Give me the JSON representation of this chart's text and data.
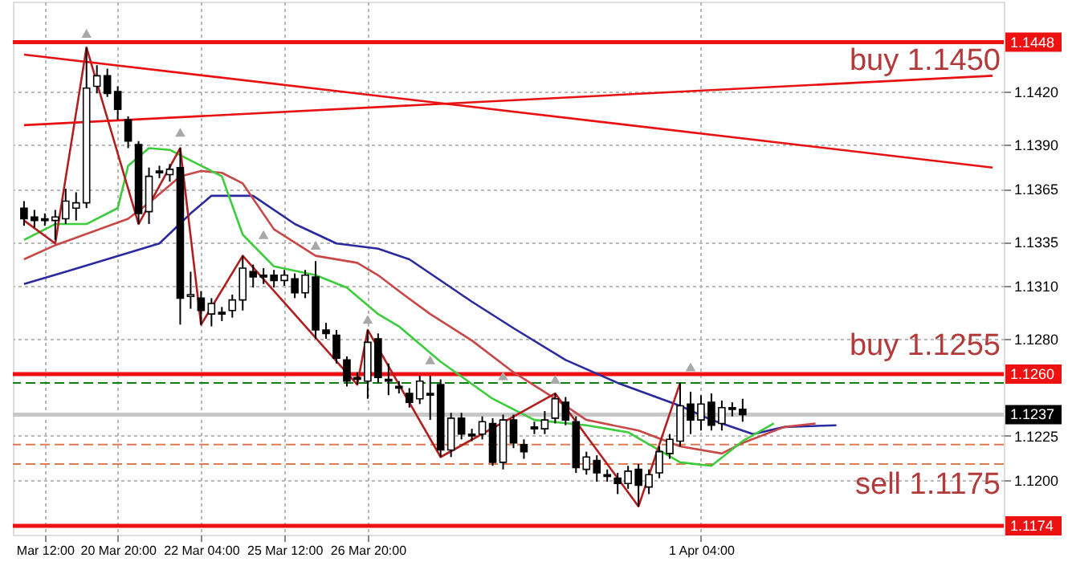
{
  "chart_data": {
    "type": "candlestick",
    "categories": [
      null,
      null,
      "Mar 12:00",
      null,
      null,
      null,
      null,
      null,
      null,
      "20 Mar 20:00",
      null,
      null,
      null,
      null,
      null,
      null,
      null,
      "22 Mar 04:00",
      null,
      null,
      null,
      null,
      null,
      null,
      null,
      "25 Mar 12:00",
      null,
      null,
      null,
      null,
      null,
      null,
      null,
      "26 Mar 20:00",
      null,
      null,
      null,
      null,
      null,
      null,
      null,
      null,
      null,
      null,
      null,
      null,
      null,
      null,
      null,
      null,
      null,
      null,
      null,
      null,
      null,
      null,
      null,
      null,
      null,
      null,
      null,
      null,
      null,
      null,
      null,
      "1 Apr 04:00",
      null,
      null,
      null,
      null,
      null,
      null,
      null,
      null,
      null,
      null,
      null,
      null,
      null,
      null,
      null,
      null,
      null,
      null,
      null,
      null,
      null,
      null,
      null,
      null,
      null,
      null,
      null,
      null
    ],
    "ohlc": [
      [
        1.1354,
        1.1358,
        1.1344,
        1.1348
      ],
      [
        1.1349,
        1.1353,
        1.1343,
        1.1347
      ],
      [
        1.1348,
        1.1351,
        1.1344,
        1.1347
      ],
      [
        1.1347,
        1.1353,
        1.1336,
        1.1349
      ],
      [
        1.1348,
        1.1365,
        1.1345,
        1.1358
      ],
      [
        1.1354,
        1.1363,
        1.1347,
        1.1357
      ],
      [
        1.1357,
        1.1445,
        1.1354,
        1.1422
      ],
      [
        1.1423,
        1.1435,
        1.1419,
        1.1429
      ],
      [
        1.1429,
        1.1433,
        1.1417,
        1.1419
      ],
      [
        1.142,
        1.1423,
        1.1404,
        1.141
      ],
      [
        1.1404,
        1.1406,
        1.1388,
        1.1392
      ],
      [
        1.139,
        1.1392,
        1.1345,
        1.1351
      ],
      [
        1.1352,
        1.1377,
        1.1345,
        1.1372
      ],
      [
        1.1375,
        1.1378,
        1.1371,
        1.1374
      ],
      [
        1.1373,
        1.1379,
        1.1369,
        1.1376
      ],
      [
        1.1377,
        1.1388,
        1.1288,
        1.1303
      ],
      [
        1.1304,
        1.1318,
        1.1297,
        1.1305
      ],
      [
        1.1303,
        1.1307,
        1.1288,
        1.1296
      ],
      [
        1.1294,
        1.1303,
        1.1287,
        1.13
      ],
      [
        1.1295,
        1.1298,
        1.129,
        1.1294
      ],
      [
        1.1296,
        1.1305,
        1.1292,
        1.1302
      ],
      [
        1.1302,
        1.1327,
        1.1296,
        1.132
      ],
      [
        1.1318,
        1.1322,
        1.1309,
        1.1315
      ],
      [
        1.1316,
        1.132,
        1.1311,
        1.1315
      ],
      [
        1.1316,
        1.1319,
        1.1309,
        1.1313
      ],
      [
        1.1313,
        1.1319,
        1.131,
        1.1316
      ],
      [
        1.1314,
        1.1317,
        1.1303,
        1.1306
      ],
      [
        1.1306,
        1.1319,
        1.1303,
        1.1316
      ],
      [
        1.1315,
        1.1324,
        1.128,
        1.1285
      ],
      [
        1.1285,
        1.1289,
        1.128,
        1.1283
      ],
      [
        1.1282,
        1.1285,
        1.1266,
        1.1269
      ],
      [
        1.1268,
        1.127,
        1.1253,
        1.1256
      ],
      [
        1.1258,
        1.1261,
        1.1254,
        1.1257
      ],
      [
        1.1256,
        1.1285,
        1.1246,
        1.1278
      ],
      [
        1.128,
        1.1283,
        1.1255,
        1.1258
      ],
      [
        1.1257,
        1.1266,
        1.1248,
        1.1256
      ],
      [
        1.1253,
        1.1256,
        1.1249,
        1.1252
      ],
      [
        1.1249,
        1.1252,
        1.1241,
        1.1244
      ],
      [
        1.1246,
        1.1259,
        1.1243,
        1.1256
      ],
      [
        1.1249,
        1.1259,
        1.1234,
        1.1248
      ],
      [
        1.1254,
        1.1257,
        1.1213,
        1.1217
      ],
      [
        1.1217,
        1.1238,
        1.1213,
        1.1235
      ],
      [
        1.1235,
        1.1238,
        1.1223,
        1.1226
      ],
      [
        1.1226,
        1.1229,
        1.1222,
        1.1225
      ],
      [
        1.1226,
        1.1236,
        1.1223,
        1.1233
      ],
      [
        1.1232,
        1.1235,
        1.1208,
        1.121
      ],
      [
        1.121,
        1.1237,
        1.1206,
        1.1234
      ],
      [
        1.1234,
        1.1237,
        1.1218,
        1.1221
      ],
      [
        1.122,
        1.1223,
        1.1212,
        1.1216
      ],
      [
        1.123,
        1.1233,
        1.1226,
        1.1229
      ],
      [
        1.1229,
        1.1239,
        1.1226,
        1.1234
      ],
      [
        1.1235,
        1.1249,
        1.1232,
        1.1246
      ],
      [
        1.1244,
        1.1247,
        1.1231,
        1.1234
      ],
      [
        1.1233,
        1.1236,
        1.1204,
        1.1207
      ],
      [
        1.1206,
        1.1216,
        1.1203,
        1.1213
      ],
      [
        1.1211,
        1.1214,
        1.1199,
        1.1204
      ],
      [
        1.1203,
        1.1206,
        1.1199,
        1.1202
      ],
      [
        1.1201,
        1.1204,
        1.1192,
        1.1198
      ],
      [
        1.1198,
        1.1208,
        1.1195,
        1.1205
      ],
      [
        1.1206,
        1.1209,
        1.1185,
        1.1197
      ],
      [
        1.1196,
        1.1206,
        1.1192,
        1.1203
      ],
      [
        1.1204,
        1.1219,
        1.1201,
        1.1216
      ],
      [
        1.1215,
        1.1226,
        1.1212,
        1.1223
      ],
      [
        1.1222,
        1.1255,
        1.1219,
        1.1242
      ],
      [
        1.1243,
        1.125,
        1.1226,
        1.1234
      ],
      [
        1.1234,
        1.1248,
        1.1228,
        1.1243
      ],
      [
        1.1244,
        1.1249,
        1.1228,
        1.1231
      ],
      [
        1.1232,
        1.1245,
        1.1228,
        1.1241
      ],
      [
        1.1241,
        1.1244,
        1.1236,
        1.124
      ],
      [
        1.124,
        1.1246,
        1.1233,
        1.1237
      ],
      null,
      null,
      null,
      null,
      null,
      null,
      null,
      null,
      null,
      null,
      null,
      null,
      null,
      null,
      null,
      null,
      null,
      null,
      null,
      null,
      null,
      null,
      null,
      null
    ],
    "series": [
      {
        "type": "line",
        "color": "#2a2a9e",
        "values": [
          1.1311,
          null,
          null,
          null,
          1.1318,
          null,
          null,
          null,
          null,
          null,
          null,
          null,
          null,
          1.1334,
          null,
          null,
          1.1351,
          null,
          1.1361,
          null,
          null,
          null,
          1.1361,
          null,
          null,
          null,
          1.1345,
          null,
          null,
          null,
          1.1334,
          null,
          null,
          null,
          1.1331,
          null,
          null,
          1.1325,
          null,
          null,
          null,
          null,
          null,
          1.1301,
          null,
          null,
          null,
          1.1286,
          null,
          null,
          null,
          null,
          1.1268,
          null,
          null,
          null,
          null,
          1.1255,
          null,
          null,
          null,
          null,
          null,
          1.1242,
          null,
          null,
          1.1234,
          null,
          null,
          null,
          1.1226,
          null,
          null,
          1.123,
          null,
          null,
          null,
          null,
          1.1231,
          null,
          null,
          null,
          null,
          null,
          null,
          null,
          null,
          null,
          null,
          null,
          null,
          null,
          null,
          null
        ]
      },
      {
        "type": "line",
        "color": "#c84848",
        "values": [
          1.1325,
          null,
          null,
          1.1333,
          null,
          null,
          null,
          null,
          null,
          null,
          1.1348,
          null,
          1.1357,
          null,
          null,
          1.1372,
          null,
          1.1375,
          null,
          1.1374,
          null,
          1.1368,
          null,
          null,
          1.1342,
          null,
          null,
          null,
          1.1327,
          null,
          null,
          null,
          1.1323,
          null,
          1.1316,
          null,
          1.1307,
          null,
          null,
          1.1294,
          null,
          null,
          null,
          1.1279,
          null,
          null,
          null,
          1.1261,
          null,
          null,
          null,
          1.1246,
          null,
          null,
          1.1234,
          null,
          null,
          null,
          null,
          1.1228,
          null,
          null,
          null,
          1.1219,
          null,
          null,
          null,
          1.1215,
          null,
          1.1221,
          null,
          null,
          null,
          1.123,
          null,
          null,
          1.1232,
          null,
          null,
          null,
          null,
          null,
          null,
          null,
          null,
          null,
          null,
          null,
          null,
          null,
          null,
          null,
          null,
          null
        ]
      },
      {
        "type": "line",
        "color": "#3ccc3c",
        "values": [
          1.1336,
          null,
          null,
          1.1345,
          null,
          null,
          1.1345,
          null,
          null,
          1.1354,
          1.1378,
          null,
          1.1388,
          null,
          1.1387,
          null,
          1.1381,
          null,
          null,
          1.1372,
          null,
          1.1339,
          null,
          null,
          1.1321,
          null,
          null,
          null,
          1.1316,
          null,
          null,
          1.1309,
          null,
          null,
          1.1294,
          null,
          1.1287,
          null,
          null,
          null,
          1.1267,
          null,
          null,
          null,
          null,
          1.1246,
          null,
          null,
          null,
          1.1234,
          null,
          null,
          null,
          null,
          1.1231,
          null,
          null,
          null,
          1.1227,
          null,
          null,
          null,
          null,
          1.121,
          null,
          null,
          1.1208,
          null,
          null,
          1.1222,
          null,
          null,
          1.1232,
          null,
          null,
          null,
          null,
          null,
          null,
          null,
          null,
          null,
          null,
          null,
          null,
          null,
          null,
          null,
          null,
          null,
          null,
          null,
          null,
          null
        ]
      },
      {
        "type": "line",
        "color": "#b02020",
        "values": [
          1.1347,
          null,
          null,
          1.1334,
          null,
          null,
          1.1445,
          null,
          null,
          null,
          null,
          1.1345,
          null,
          null,
          null,
          1.1388,
          null,
          1.1288,
          null,
          null,
          null,
          1.1327,
          null,
          null,
          null,
          null,
          null,
          null,
          null,
          null,
          null,
          null,
          1.1254,
          1.1285,
          null,
          null,
          null,
          null,
          null,
          null,
          1.1213,
          null,
          null,
          null,
          null,
          null,
          null,
          null,
          null,
          null,
          null,
          1.1249,
          null,
          null,
          null,
          null,
          null,
          null,
          null,
          1.1185,
          null,
          null,
          null,
          1.1255,
          null,
          null,
          null,
          null,
          null,
          null,
          null,
          null,
          null,
          null,
          null,
          null,
          null,
          null,
          null,
          null,
          null,
          null,
          null,
          null,
          null,
          null,
          null,
          null,
          null,
          null,
          null,
          null,
          null,
          null
        ]
      },
      {
        "type": "line",
        "color": "#e81010",
        "values": [
          1.1441,
          null,
          null,
          null,
          null,
          null,
          null,
          null,
          null,
          null,
          null,
          null,
          null,
          null,
          null,
          null,
          null,
          null,
          null,
          null,
          null,
          null,
          null,
          null,
          null,
          null,
          null,
          null,
          null,
          null,
          null,
          null,
          null,
          null,
          null,
          null,
          null,
          null,
          null,
          null,
          null,
          null,
          null,
          null,
          null,
          null,
          null,
          null,
          null,
          null,
          null,
          null,
          null,
          null,
          null,
          null,
          null,
          null,
          null,
          null,
          null,
          null,
          null,
          null,
          null,
          null,
          null,
          null,
          null,
          null,
          null,
          null,
          null,
          null,
          null,
          null,
          null,
          null,
          null,
          null,
          null,
          null,
          null,
          null,
          null,
          null,
          null,
          null,
          null,
          null,
          null,
          null,
          null,
          1.1377
        ]
      },
      {
        "type": "line",
        "color": "#e81010",
        "values": [
          1.1401,
          null,
          null,
          null,
          null,
          null,
          null,
          null,
          null,
          null,
          null,
          null,
          null,
          null,
          null,
          null,
          null,
          null,
          null,
          null,
          null,
          null,
          null,
          null,
          null,
          null,
          null,
          null,
          null,
          null,
          null,
          null,
          null,
          null,
          null,
          null,
          null,
          null,
          null,
          null,
          null,
          null,
          null,
          null,
          null,
          null,
          null,
          null,
          null,
          null,
          null,
          null,
          null,
          null,
          null,
          null,
          null,
          null,
          null,
          null,
          null,
          null,
          null,
          null,
          null,
          null,
          null,
          null,
          null,
          null,
          null,
          null,
          null,
          null,
          null,
          null,
          null,
          null,
          null,
          null,
          null,
          null,
          null,
          null,
          null,
          null,
          null,
          null,
          null,
          null,
          null,
          null,
          null,
          1.1429
        ]
      },
      {
        "type": "scatter",
        "marker": "triangle",
        "color": "#a8a8a8",
        "values": [
          null,
          null,
          null,
          null,
          null,
          null,
          1.1453,
          null,
          null,
          null,
          null,
          null,
          null,
          null,
          null,
          1.1397,
          null,
          null,
          null,
          null,
          null,
          null,
          null,
          1.1339,
          null,
          null,
          null,
          null,
          1.1333,
          null,
          null,
          null,
          null,
          1.1291,
          null,
          null,
          null,
          null,
          null,
          1.1268,
          null,
          null,
          null,
          null,
          null,
          null,
          1.1259,
          null,
          null,
          null,
          null,
          1.1257,
          null,
          null,
          null,
          null,
          null,
          null,
          null,
          null,
          null,
          null,
          null,
          null,
          1.1264,
          null,
          null,
          null,
          null,
          null,
          null,
          null,
          null,
          null,
          null,
          null,
          null,
          null,
          null,
          null,
          null,
          null,
          null,
          null,
          null,
          null,
          null,
          null,
          null,
          null,
          null,
          null,
          null,
          null
        ]
      }
    ],
    "ylim": [
      1.1169,
      1.1471
    ],
    "yticks": [
      {
        "value": 1.142,
        "label": "1.1420"
      },
      {
        "value": 1.139,
        "label": "1.1390"
      },
      {
        "value": 1.1365,
        "label": "1.1365"
      },
      {
        "value": 1.1335,
        "label": "1.1335"
      },
      {
        "value": 1.131,
        "label": "1.1310"
      },
      {
        "value": 1.128,
        "label": "1.1280"
      },
      {
        "value": 1.1225,
        "label": "1.1225"
      },
      {
        "value": 1.12,
        "label": "1.1200"
      }
    ],
    "grid": true,
    "ref_lines": [
      {
        "axis": "y",
        "value": 1.1448,
        "label": "1.1448",
        "color": "#ee1111",
        "line_style": "solid"
      },
      {
        "axis": "y",
        "value": 1.126,
        "label": "1.1260",
        "color": "#ee1111",
        "line_style": "solid"
      },
      {
        "axis": "y",
        "value": 1.1174,
        "label": "1.1174",
        "color": "#ee1111",
        "line_style": "solid"
      },
      {
        "axis": "y",
        "value": 1.1237,
        "label": "1.1237",
        "color": "#c8c8c8",
        "line_style": "solid"
      },
      {
        "axis": "y",
        "value": 1.1255,
        "color": "#108010",
        "line_style": "dashed"
      },
      {
        "axis": "y",
        "value": 1.122,
        "color": "#e07850",
        "line_style": "dashed"
      },
      {
        "axis": "y",
        "value": 1.1209,
        "color": "#e07850",
        "line_style": "dashed"
      }
    ],
    "annotations": [
      "buy 1.1450",
      "buy 1.1255",
      "sell 1.1175"
    ]
  }
}
